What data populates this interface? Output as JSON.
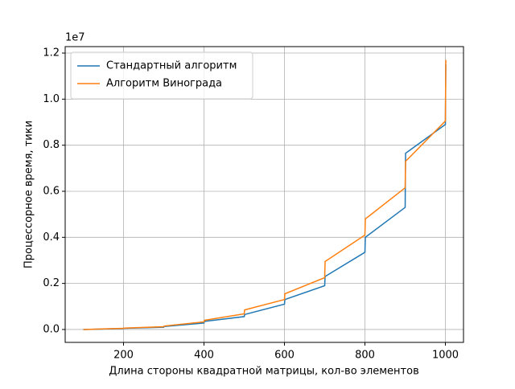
{
  "chart_data": {
    "type": "line",
    "xlabel": "Длина стороны квадратной матрицы, кол-во элементов",
    "ylabel": "Процессорное время, тики",
    "offset_label": "1e7",
    "x": [
      100,
      101,
      200,
      201,
      300,
      301,
      400,
      401,
      500,
      501,
      600,
      601,
      700,
      701,
      800,
      801,
      900,
      901,
      1000,
      1001
    ],
    "series": [
      {
        "name": "Стандартный алгоритм",
        "color": "#1f77b4",
        "values": [
          0.0,
          0.0,
          0.004,
          0.005,
          0.01,
          0.013,
          0.028,
          0.035,
          0.056,
          0.065,
          0.11,
          0.13,
          0.19,
          0.23,
          0.335,
          0.4,
          0.53,
          0.765,
          0.89,
          1.15
        ]
      },
      {
        "name": "Алгоритм Винограда",
        "color": "#ff7f0e",
        "values": [
          0.0,
          0.0,
          0.005,
          0.006,
          0.012,
          0.015,
          0.033,
          0.04,
          0.068,
          0.085,
          0.13,
          0.155,
          0.225,
          0.295,
          0.41,
          0.48,
          0.615,
          0.73,
          0.905,
          1.17
        ]
      }
    ],
    "xlim": [
      55,
      1045
    ],
    "xticks": [
      200,
      400,
      600,
      800,
      1000
    ],
    "ylim": [
      -0.056,
      1.228
    ],
    "yticks": [
      {
        "value": 0,
        "label": "0.0"
      },
      0.2,
      0.4,
      0.6,
      0.8,
      {
        "value": 1,
        "label": "1.0"
      },
      1.2
    ],
    "grid": true,
    "legend": "upper-left"
  }
}
